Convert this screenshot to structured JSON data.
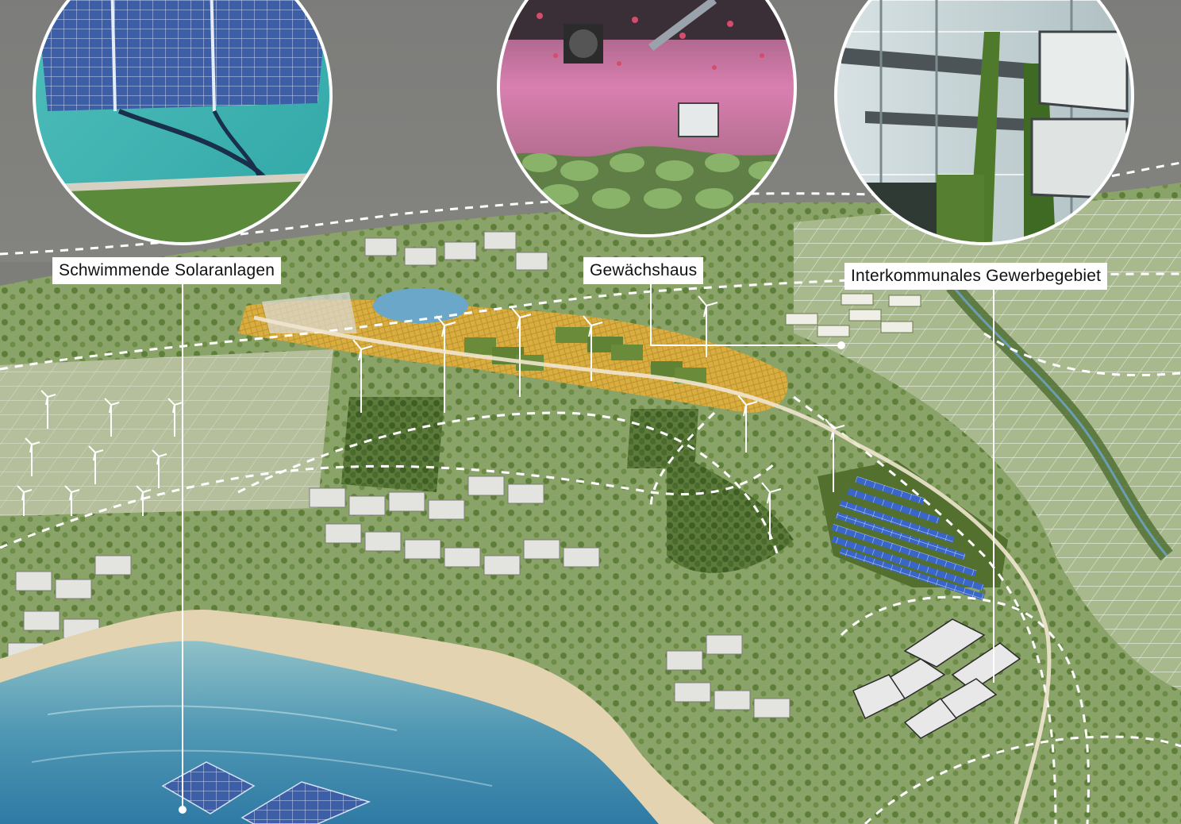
{
  "labels": {
    "floating_solar": "Schwimmende Solaranlagen",
    "greenhouse": "Gewächshaus",
    "business_park": "Interkommunales Gewerbegebiet"
  },
  "photo_insets": [
    {
      "name": "floating-solar-photo",
      "subject": "floating solar panels on turquoise lake"
    },
    {
      "name": "greenhouse-photo",
      "subject": "indoor vertical farm under pink LED light"
    },
    {
      "name": "green-building-photo",
      "subject": "glass building with green living walls"
    }
  ],
  "colors": {
    "water": "#4f97b3",
    "sand": "#e4d3b0",
    "vegetation": "#8aa369",
    "forest": "#4b6b2e",
    "orange_field": "#d9ad3f",
    "solar_blue": "#2f57c9",
    "path": "#ffffff"
  }
}
